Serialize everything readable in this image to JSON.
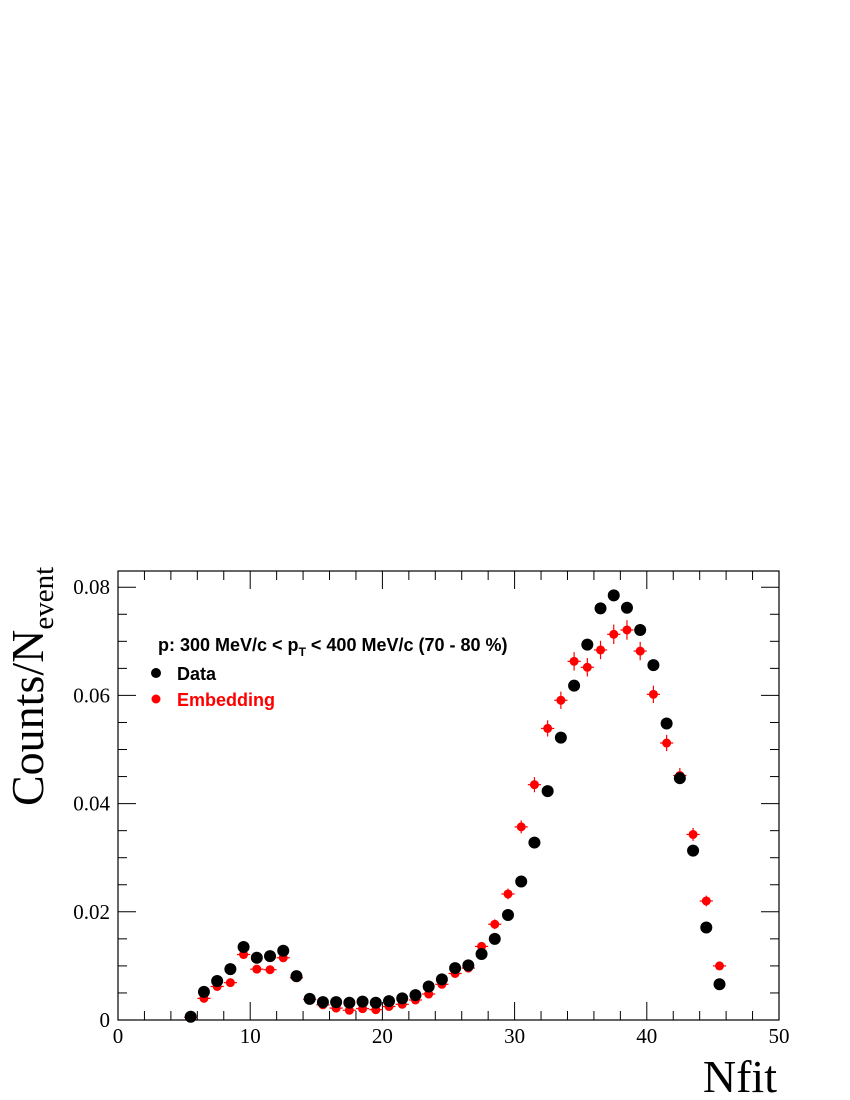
{
  "chart_data": {
    "type": "scatter",
    "annotation": {
      "prefix": "p: 300 MeV/c < p",
      "sub": "T",
      "suffix": " < 400 MeV/c (70 - 80 %)"
    },
    "xlabel": "Nfit",
    "ylabel": {
      "main": "Counts/N",
      "sub": "event"
    },
    "xlim": [
      0,
      50
    ],
    "ylim": [
      0,
      0.083
    ],
    "x_ticks": [
      "0",
      "10",
      "20",
      "30",
      "40",
      "50"
    ],
    "y_ticks": [
      "0",
      "0.02",
      "0.04",
      "0.06",
      "0.08"
    ],
    "legend_position": "top-left",
    "series": [
      {
        "name": "Data",
        "color": "#000000",
        "marker": "circle",
        "x": [
          5.5,
          6.5,
          7.5,
          8.5,
          9.5,
          10.5,
          11.5,
          12.5,
          13.5,
          14.5,
          15.5,
          16.5,
          17.5,
          18.5,
          19.5,
          20.5,
          21.5,
          22.5,
          23.5,
          24.5,
          25.5,
          26.5,
          27.5,
          28.5,
          29.5,
          30.5,
          31.5,
          32.5,
          33.5,
          34.5,
          35.5,
          36.5,
          37.5,
          38.5,
          39.5,
          40.5,
          41.5,
          42.5,
          43.5,
          44.5,
          45.5
        ],
        "y": [
          0.0006,
          0.0052,
          0.0072,
          0.0094,
          0.0135,
          0.0115,
          0.0118,
          0.0128,
          0.0081,
          0.0039,
          0.0033,
          0.0033,
          0.0032,
          0.0034,
          0.0032,
          0.0035,
          0.004,
          0.0046,
          0.0062,
          0.0075,
          0.0096,
          0.0101,
          0.0122,
          0.015,
          0.0194,
          0.0256,
          0.0328,
          0.0423,
          0.0522,
          0.0618,
          0.0694,
          0.0761,
          0.0785,
          0.0762,
          0.0721,
          0.0656,
          0.0548,
          0.0447,
          0.0313,
          0.0171,
          0.0066
        ]
      },
      {
        "name": "Embedding",
        "color": "#ff0000",
        "marker": "circle",
        "x": [
          5.5,
          6.5,
          7.5,
          8.5,
          9.5,
          10.5,
          11.5,
          12.5,
          13.5,
          14.5,
          15.5,
          16.5,
          17.5,
          18.5,
          19.5,
          20.5,
          21.5,
          22.5,
          23.5,
          24.5,
          25.5,
          26.5,
          27.5,
          28.5,
          29.5,
          30.5,
          31.5,
          32.5,
          33.5,
          34.5,
          35.5,
          36.5,
          37.5,
          38.5,
          39.5,
          40.5,
          41.5,
          42.5,
          43.5,
          44.5,
          45.5
        ],
        "y": [
          0.0005,
          0.004,
          0.0062,
          0.0069,
          0.0121,
          0.0094,
          0.0093,
          0.0115,
          0.0078,
          0.0038,
          0.0028,
          0.0022,
          0.0018,
          0.0021,
          0.0019,
          0.0025,
          0.0029,
          0.0037,
          0.0048,
          0.0066,
          0.0086,
          0.0096,
          0.0136,
          0.0177,
          0.0233,
          0.0357,
          0.0435,
          0.0539,
          0.0591,
          0.0663,
          0.0652,
          0.0684,
          0.0713,
          0.0721,
          0.0682,
          0.0602,
          0.0512,
          0.0452,
          0.0343,
          0.022,
          0.01
        ],
        "yerr": [
          0.0002,
          0.0005,
          0.0006,
          0.0006,
          0.0008,
          0.0007,
          0.0007,
          0.0008,
          0.0006,
          0.0004,
          0.0004,
          0.0003,
          0.0003,
          0.0003,
          0.0003,
          0.0004,
          0.0004,
          0.0004,
          0.0005,
          0.0006,
          0.0007,
          0.0007,
          0.0008,
          0.0009,
          0.001,
          0.0012,
          0.0014,
          0.0015,
          0.0016,
          0.0017,
          0.0017,
          0.0017,
          0.0018,
          0.0018,
          0.0017,
          0.0016,
          0.0015,
          0.0014,
          0.0012,
          0.001,
          0.0006
        ]
      }
    ]
  }
}
